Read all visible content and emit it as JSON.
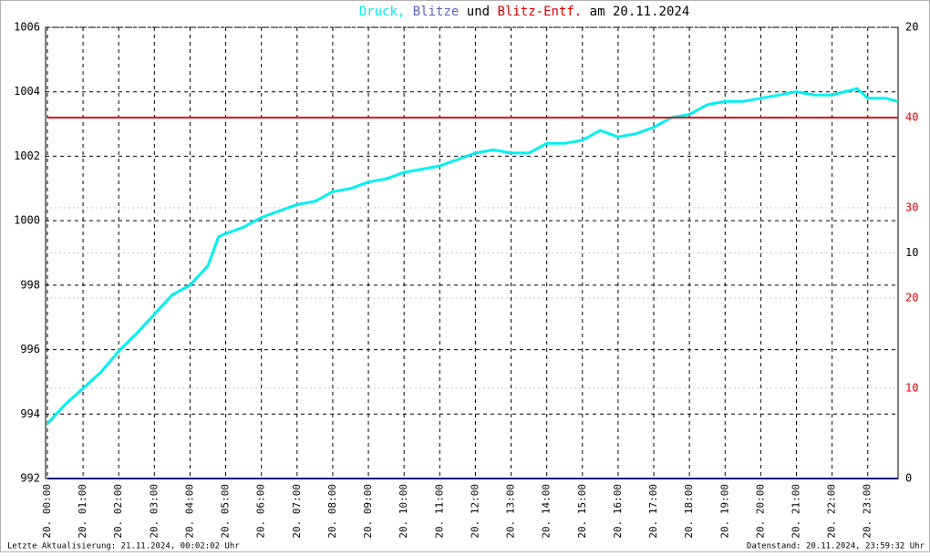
{
  "chart_data": {
    "type": "line",
    "title_words": [
      ",",
      "und",
      "am 20.11.2024"
    ],
    "series": [
      {
        "name": "Druck",
        "color": "#00f0f0",
        "axis": "y",
        "x": [
          0,
          0.5,
          1,
          1.5,
          2,
          2.5,
          3,
          3.5,
          4,
          4.5,
          4.8,
          5,
          5.5,
          6,
          6.5,
          7,
          7.5,
          8,
          8.5,
          9,
          9.5,
          10,
          10.5,
          11,
          11.5,
          12,
          12.5,
          13,
          13.5,
          14,
          14.5,
          15,
          15.5,
          16,
          16.5,
          17,
          17.5,
          18,
          18.5,
          19,
          19.5,
          20,
          20.5,
          21,
          21.5,
          22,
          22.7,
          23,
          23.5,
          23.85
        ],
        "values": [
          993.7,
          994.3,
          994.8,
          995.3,
          995.95,
          996.5,
          997.1,
          997.7,
          998.0,
          998.6,
          999.5,
          999.6,
          999.8,
          1000.1,
          1000.3,
          1000.5,
          1000.6,
          1000.9,
          1001.0,
          1001.2,
          1001.3,
          1001.5,
          1001.6,
          1001.7,
          1001.9,
          1002.1,
          1002.2,
          1002.1,
          1002.1,
          1002.4,
          1002.4,
          1002.5,
          1002.8,
          1002.6,
          1002.7,
          1002.9,
          1003.2,
          1003.3,
          1003.6,
          1003.7,
          1003.7,
          1003.8,
          1003.9,
          1004.0,
          1003.9,
          1003.9,
          1004.1,
          1003.8,
          1003.8,
          1003.7
        ]
      },
      {
        "name": "Blitze",
        "color": "#000080",
        "axis": "y2",
        "x": [
          0,
          23.85
        ],
        "values": [
          0,
          0
        ]
      },
      {
        "name": "Blitz-Entf.",
        "color": "#e00000",
        "axis": "y3",
        "x": [
          0,
          23.85
        ],
        "values": [
          40,
          40
        ]
      }
    ],
    "xlim": [
      -0.05,
      23.85
    ],
    "xticks": [
      {
        "value": 0,
        "label": "20. 00:00"
      },
      {
        "value": 1,
        "label": "20. 01:00"
      },
      {
        "value": 2,
        "label": "20. 02:00"
      },
      {
        "value": 3,
        "label": "20. 03:00"
      },
      {
        "value": 4,
        "label": "20. 04:00"
      },
      {
        "value": 5,
        "label": "20. 05:00"
      },
      {
        "value": 6,
        "label": "20. 06:00"
      },
      {
        "value": 7,
        "label": "20. 07:00"
      },
      {
        "value": 8,
        "label": "20. 08:00"
      },
      {
        "value": 9,
        "label": "20. 09:00"
      },
      {
        "value": 10,
        "label": "20. 10:00"
      },
      {
        "value": 11,
        "label": "20. 11:00"
      },
      {
        "value": 12,
        "label": "20. 12:00"
      },
      {
        "value": 13,
        "label": "20. 13:00"
      },
      {
        "value": 14,
        "label": "20. 14:00"
      },
      {
        "value": 15,
        "label": "20. 15:00"
      },
      {
        "value": 16,
        "label": "20. 16:00"
      },
      {
        "value": 17,
        "label": "20. 17:00"
      },
      {
        "value": 18,
        "label": "20. 18:00"
      },
      {
        "value": 19,
        "label": "20. 19:00"
      },
      {
        "value": 20,
        "label": "20. 20:00"
      },
      {
        "value": 21,
        "label": "20. 21:00"
      },
      {
        "value": 22,
        "label": "20. 22:00"
      },
      {
        "value": 23,
        "label": "20. 23:00"
      }
    ],
    "ylim": [
      992,
      1006
    ],
    "yticks": [
      992,
      994,
      996,
      998,
      1000,
      1002,
      1004,
      1006
    ],
    "y2lim": [
      0,
      20
    ],
    "y2ticks": [
      0,
      10,
      20
    ],
    "y3lim": [
      0,
      50
    ],
    "y3ticks": [
      10,
      20,
      30,
      40
    ],
    "y3color": "#e00000",
    "grid": true,
    "footer_left": "Letzte Aktualisierung: 21.11.2024, 00:02:02 Uhr",
    "footer_right": "Datenstand: 20.11.2024, 23:59:32 Uhr"
  }
}
